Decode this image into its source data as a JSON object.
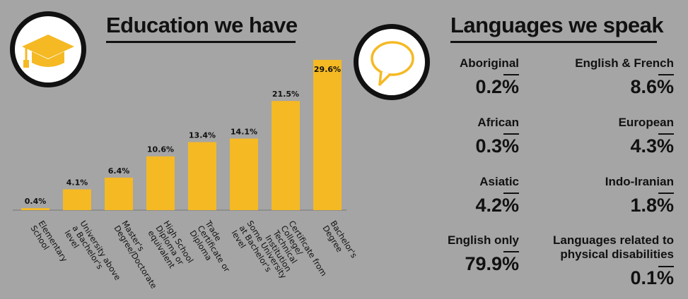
{
  "education": {
    "title": "Education we have",
    "icon": "graduation-cap-icon"
  },
  "languages": {
    "title": "Languages we speak",
    "icon": "speech-bubble-icon",
    "items": [
      {
        "name": "Aboriginal",
        "value": "0.2%"
      },
      {
        "name": "African",
        "value": "0.3%"
      },
      {
        "name": "Asiatic",
        "value": "4.2%"
      },
      {
        "name": "English only",
        "value": "79.9%"
      },
      {
        "name": "English & French",
        "value": "8.6%"
      },
      {
        "name": "European",
        "value": "4.3%"
      },
      {
        "name": "Indo-Iranian",
        "value": "1.8%"
      },
      {
        "name": "Languages related to physical disabilities",
        "value": "0.1%"
      }
    ]
  },
  "colors": {
    "background": "#a5a5a5",
    "bar": "#f5b924",
    "text": "#111111"
  },
  "chart_data": {
    "type": "bar",
    "title": "Education we have",
    "categories": [
      "Elementary School",
      "University above a Bachelor's level",
      "Master's Degree/Doctorate",
      "High School Diploma or equivalent",
      "Trade Certificate or Diploma",
      "Some University at Bachelor's level",
      "Certificate from College/ Technical Institution",
      "Bachelor's Degree"
    ],
    "values": [
      0.4,
      4.1,
      6.4,
      10.6,
      13.4,
      14.1,
      21.5,
      29.6
    ],
    "labels": [
      "0.4%",
      "4.1%",
      "6.4%",
      "10.6%",
      "13.4%",
      "14.1%",
      "21.5%",
      "29.6%"
    ],
    "ylim": [
      0,
      30
    ],
    "grid": false
  }
}
